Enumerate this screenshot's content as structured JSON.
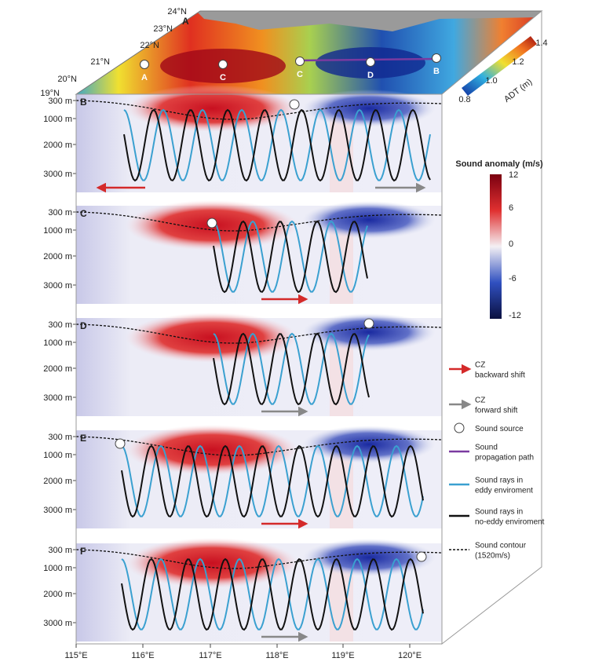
{
  "map": {
    "panel": "A",
    "lat_labels": [
      "24°N",
      "23°N",
      "22°N",
      "21°N",
      "20°N",
      "19°N"
    ],
    "points": [
      "A",
      "C",
      "C",
      "D",
      "B"
    ],
    "colorbar": {
      "label": "ADT (m)",
      "ticks": [
        "0.8",
        "1.0",
        "1.2",
        "1.4"
      ]
    }
  },
  "sections": [
    "B",
    "C",
    "D",
    "E",
    "F"
  ],
  "depth_labels": [
    "300 m",
    "1000 m",
    "2000 m",
    "3000 m"
  ],
  "lon_labels": [
    "115°E",
    "116°E",
    "117°E",
    "118°E",
    "119°E",
    "120°E"
  ],
  "anomaly_colorbar": {
    "title": "Sound  anomaly (m/s)",
    "ticks": [
      "12",
      "6",
      "0",
      "-6",
      "-12"
    ]
  },
  "legend": [
    [
      "CZ",
      "backward shift"
    ],
    [
      "CZ",
      "forward shift"
    ],
    [
      "Sound source"
    ],
    [
      "Sound",
      "propagation  path"
    ],
    [
      "Sound rays in",
      "eddy enviroment"
    ],
    [
      "Sound rays in",
      "no-eddy enviroment"
    ],
    [
      "Sound contour",
      "(1520m/s)"
    ]
  ]
}
